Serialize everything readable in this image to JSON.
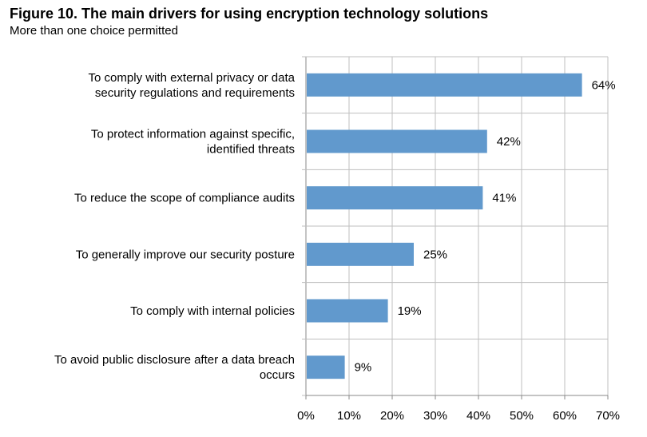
{
  "title": "Figure 10. The main drivers for using encryption technology solutions",
  "subtitle": "More than one choice permitted",
  "colors": {
    "bar": "#6199cd",
    "grid": "#bfbfbf",
    "axis": "#888888"
  },
  "chart_data": {
    "type": "bar",
    "orientation": "horizontal",
    "title": "Figure 10. The main drivers for using encryption technology solutions",
    "subtitle": "More than one choice permitted",
    "categories": [
      [
        "To comply with external privacy or data",
        "security regulations and requirements"
      ],
      [
        "To protect information against specific,",
        "identified threats"
      ],
      [
        "To reduce the scope of compliance audits"
      ],
      [
        "To generally improve our security posture"
      ],
      [
        "To comply with internal policies"
      ],
      [
        "To avoid public disclosure after a data breach",
        "occurs"
      ]
    ],
    "values": [
      64,
      42,
      41,
      25,
      19,
      9
    ],
    "data_labels": [
      "64%",
      "42%",
      "41%",
      "25%",
      "19%",
      "9%"
    ],
    "xlim": [
      0,
      70
    ],
    "x_ticks": [
      0,
      10,
      20,
      30,
      40,
      50,
      60,
      70
    ],
    "x_tick_labels": [
      "0%",
      "10%",
      "20%",
      "30%",
      "40%",
      "50%",
      "60%",
      "70%"
    ],
    "grid": "vertical",
    "legend": "none"
  }
}
